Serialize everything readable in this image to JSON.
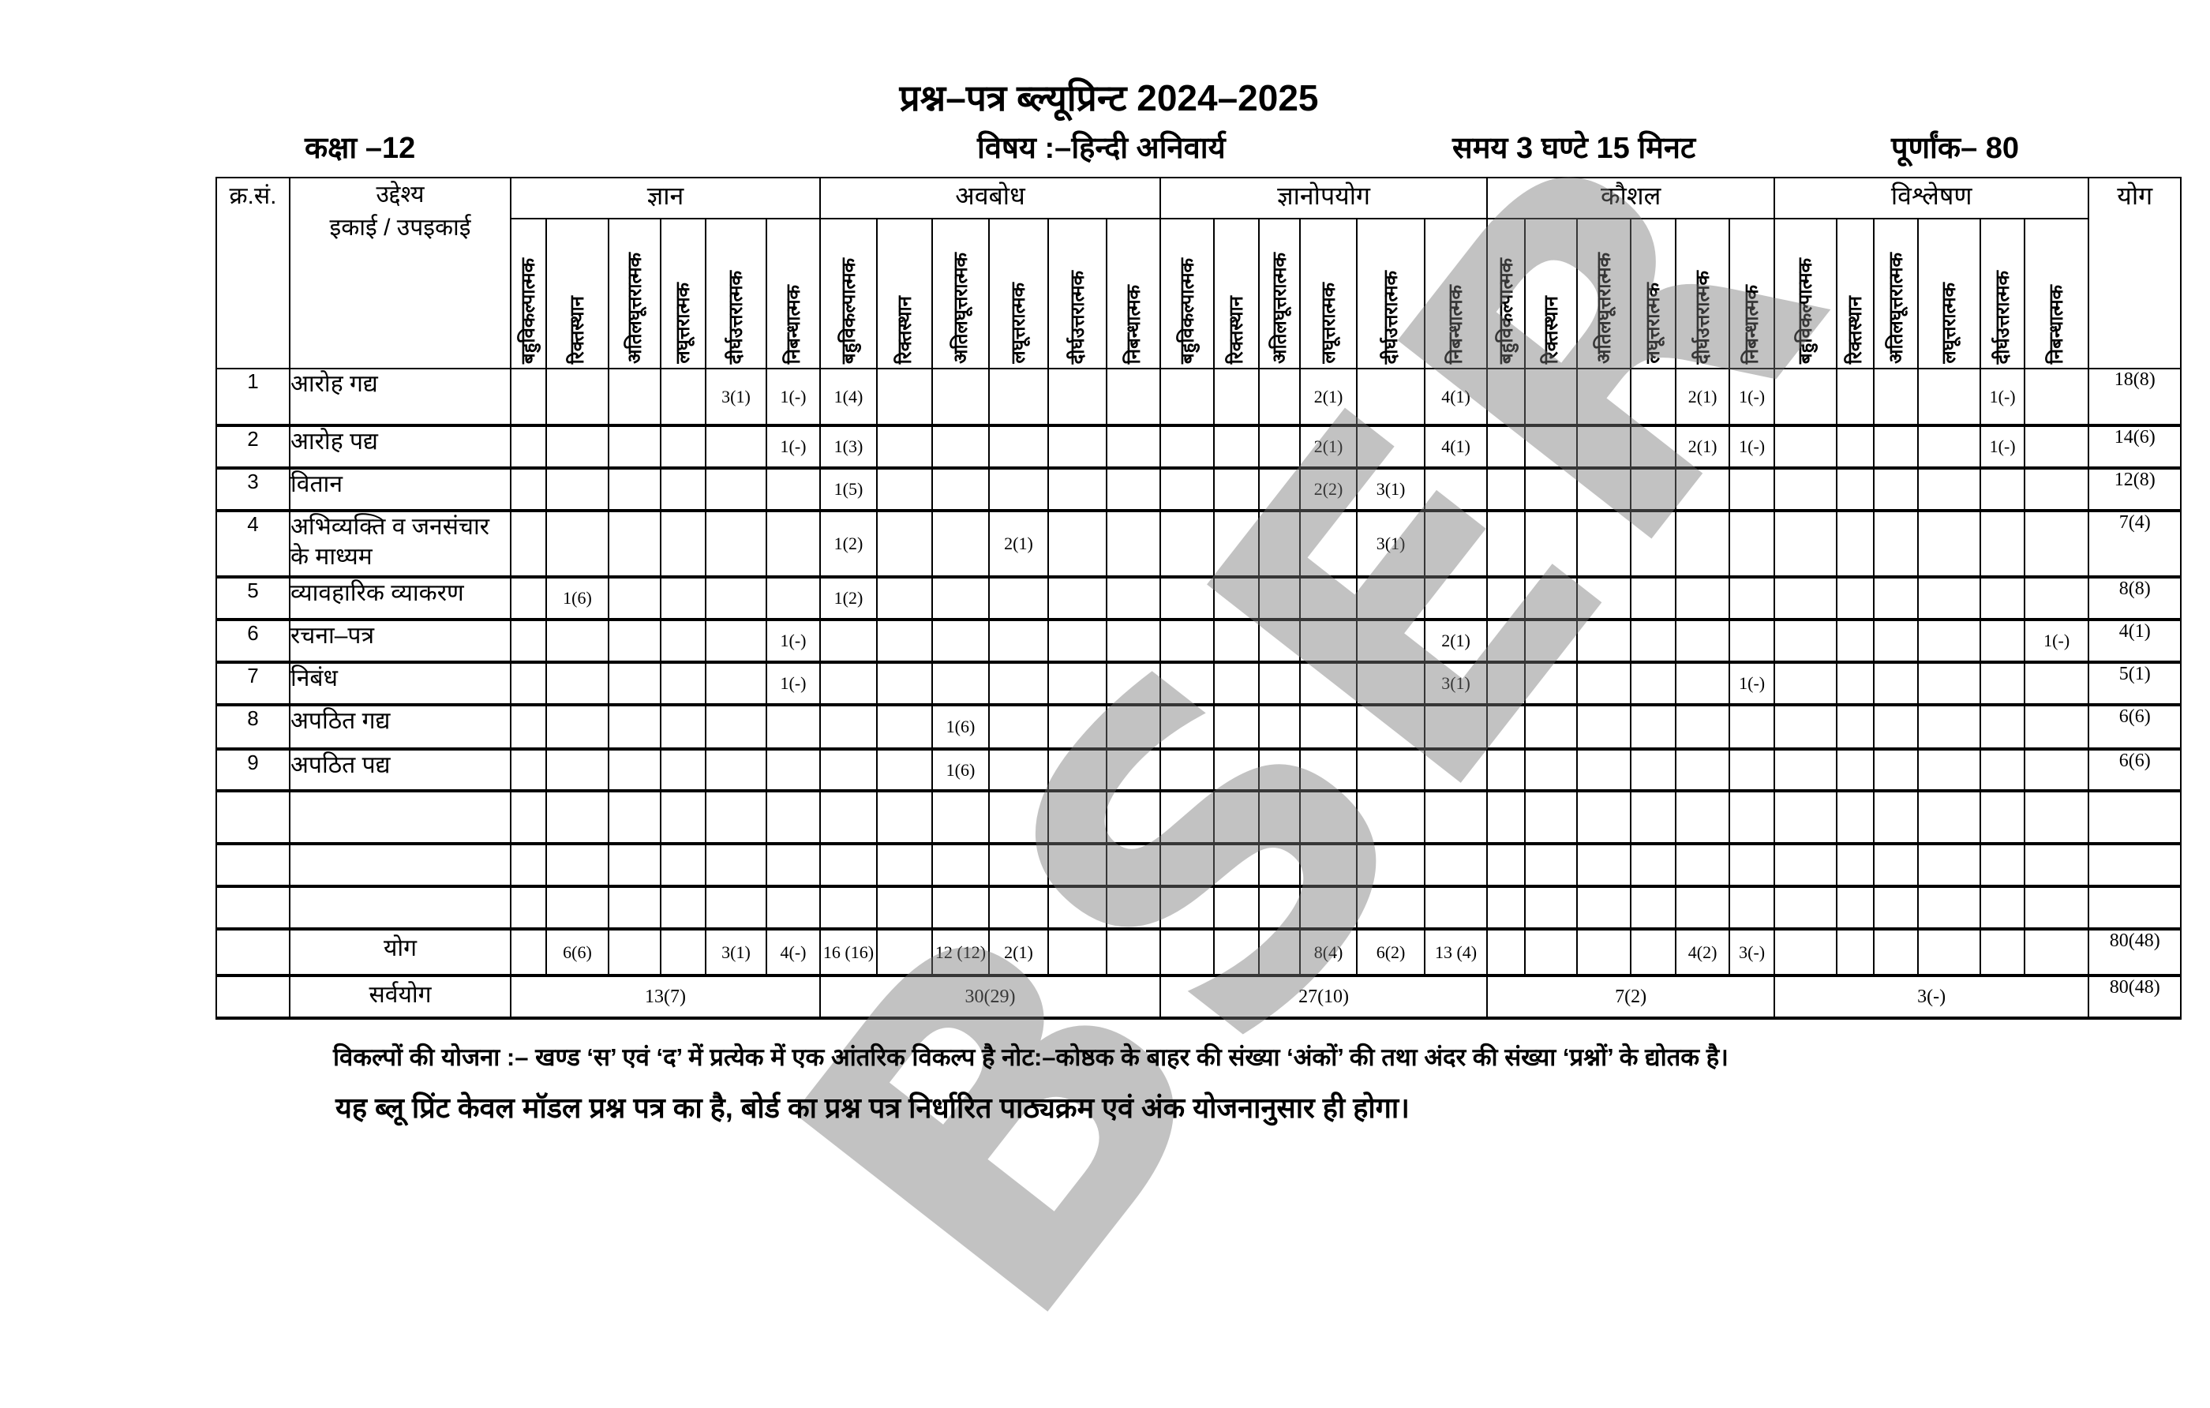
{
  "title": "प्रश्न–पत्र ब्ल्यूप्रिन्ट 2024–2025",
  "meta": {
    "class": "कक्षा –12",
    "subject": "विषय :–हिन्दी अनिवार्य",
    "time": "समय 3 घण्टे 15 मिनट",
    "max_marks": "पूर्णांक– 80"
  },
  "table": {
    "sn_header": "क्र.सं.",
    "objective_header": "उद्देश्य",
    "unit_header": "इकाई / उपइकाई",
    "groups": [
      "ज्ञान",
      "अवबोध",
      "ज्ञानोपयोग",
      "कौशल",
      "विश्लेषण"
    ],
    "total_header": "योग",
    "question_types": [
      "बहुविकल्पात्मक",
      "रिक्तस्थान",
      "अतिलघूत्तरात्मक",
      "लघूत्तरात्मक",
      "दीर्घउत्तरात्मक",
      "निबन्धात्मक"
    ]
  },
  "rows": [
    {
      "sn": "1",
      "unit": "आरोह गद्य",
      "cells": [
        "",
        "",
        "",
        "",
        "3(1)",
        "1(-)",
        "1(4)",
        "",
        "",
        "",
        "",
        "",
        "",
        "",
        "",
        "2(1)",
        "",
        "4(1)",
        "",
        "",
        "",
        "",
        "2(1)",
        "1(-)",
        "",
        "",
        "",
        "",
        "1(-)",
        ""
      ],
      "total": "18(8)"
    },
    {
      "sn": "2",
      "unit": "आरोह पद्य",
      "cells": [
        "",
        "",
        "",
        "",
        "",
        "1(-)",
        "1(3)",
        "",
        "",
        "",
        "",
        "",
        "",
        "",
        "",
        "2(1)",
        "",
        "4(1)",
        "",
        "",
        "",
        "",
        "2(1)",
        "1(-)",
        "",
        "",
        "",
        "",
        "1(-)",
        ""
      ],
      "total": "14(6)"
    },
    {
      "sn": "3",
      "unit": "वितान",
      "cells": [
        "",
        "",
        "",
        "",
        "",
        "",
        "1(5)",
        "",
        "",
        "",
        "",
        "",
        "",
        "",
        "",
        "2(2)",
        "3(1)",
        "",
        "",
        "",
        "",
        "",
        "",
        "",
        "",
        "",
        "",
        "",
        "",
        ""
      ],
      "total": "12(8)"
    },
    {
      "sn": "4",
      "unit": "अभिव्यक्ति व जनसंचार के माध्यम",
      "cells": [
        "",
        "",
        "",
        "",
        "",
        "",
        "1(2)",
        "",
        "",
        "2(1)",
        "",
        "",
        "",
        "",
        "",
        "",
        "3(1)",
        "",
        "",
        "",
        "",
        "",
        "",
        "",
        "",
        "",
        "",
        "",
        "",
        ""
      ],
      "total": "7(4)"
    },
    {
      "sn": "5",
      "unit": "व्यावहारिक व्याकरण",
      "cells": [
        "",
        "1(6)",
        "",
        "",
        "",
        "",
        "1(2)",
        "",
        "",
        "",
        "",
        "",
        "",
        "",
        "",
        "",
        "",
        "",
        "",
        "",
        "",
        "",
        "",
        "",
        "",
        "",
        "",
        "",
        "",
        ""
      ],
      "total": "8(8)"
    },
    {
      "sn": "6",
      "unit": "रचना–पत्र",
      "cells": [
        "",
        "",
        "",
        "",
        "",
        "1(-)",
        "",
        "",
        "",
        "",
        "",
        "",
        "",
        "",
        "",
        "",
        "",
        "2(1)",
        "",
        "",
        "",
        "",
        "",
        "",
        "",
        "",
        "",
        "",
        "",
        "1(-)"
      ],
      "total": "4(1)"
    },
    {
      "sn": "7",
      "unit": "निबंध",
      "cells": [
        "",
        "",
        "",
        "",
        "",
        "1(-)",
        "",
        "",
        "",
        "",
        "",
        "",
        "",
        "",
        "",
        "",
        "",
        "3(1)",
        "",
        "",
        "",
        "",
        "",
        "1(-)",
        "",
        "",
        "",
        "",
        "",
        ""
      ],
      "total": "5(1)"
    },
    {
      "sn": "8",
      "unit": "अपठित गद्य",
      "cells": [
        "",
        "",
        "",
        "",
        "",
        "",
        "",
        "",
        "1(6)",
        "",
        "",
        "",
        "",
        "",
        "",
        "",
        "",
        "",
        "",
        "",
        "",
        "",
        "",
        "",
        "",
        "",
        "",
        "",
        "",
        ""
      ],
      "total": "6(6)"
    },
    {
      "sn": "9",
      "unit": "अपठित पद्य",
      "cells": [
        "",
        "",
        "",
        "",
        "",
        "",
        "",
        "",
        "1(6)",
        "",
        "",
        "",
        "",
        "",
        "",
        "",
        "",
        "",
        "",
        "",
        "",
        "",
        "",
        "",
        "",
        "",
        "",
        "",
        "",
        ""
      ],
      "total": "6(6)"
    },
    {
      "sn": "",
      "unit": "",
      "cells": [
        "",
        "",
        "",
        "",
        "",
        "",
        "",
        "",
        "",
        "",
        "",
        "",
        "",
        "",
        "",
        "",
        "",
        "",
        "",
        "",
        "",
        "",
        "",
        "",
        "",
        "",
        "",
        "",
        "",
        ""
      ],
      "total": ""
    },
    {
      "sn": "",
      "unit": "",
      "cells": [
        "",
        "",
        "",
        "",
        "",
        "",
        "",
        "",
        "",
        "",
        "",
        "",
        "",
        "",
        "",
        "",
        "",
        "",
        "",
        "",
        "",
        "",
        "",
        "",
        "",
        "",
        "",
        "",
        "",
        ""
      ],
      "total": ""
    },
    {
      "sn": "",
      "unit": "",
      "cells": [
        "",
        "",
        "",
        "",
        "",
        "",
        "",
        "",
        "",
        "",
        "",
        "",
        "",
        "",
        "",
        "",
        "",
        "",
        "",
        "",
        "",
        "",
        "",
        "",
        "",
        "",
        "",
        "",
        "",
        ""
      ],
      "total": ""
    }
  ],
  "total_row": {
    "label": "योग",
    "cells": [
      "",
      "6(6)",
      "",
      "",
      "3(1)",
      "4(-)",
      "16 (16)",
      "",
      "12 (12)",
      "2(1)",
      "",
      "",
      "",
      "",
      "",
      "8(4)",
      "6(2)",
      "13 (4)",
      "",
      "",
      "",
      "",
      "4(2)",
      "3(-)",
      "",
      "",
      "",
      "",
      "",
      ""
    ],
    "total": "80(48)"
  },
  "grand_row": {
    "label": "सर्वयोग",
    "groups": [
      "13(7)",
      "30(29)",
      "27(10)",
      "7(2)",
      "3(-)"
    ],
    "total": "80(48)"
  },
  "notes": {
    "options": "विकल्पों की योजना :– खण्ड ‘स’ एवं ‘द’ में प्रत्येक में एक आंतरिक विकल्प है नोट:–कोष्ठक के बाहर की संख्या ‘अंकों’ की तथा अंदर की संख्या ‘प्रश्नों’ के द्योतक है।",
    "disclaimer": "यह ब्लू प्रिंट केवल मॉडल प्रश्न पत्र का है, बोर्ड का प्रश्न पत्र निर्धारित पाठ्यक्रम एवं अंक योजनानुसार ही होगा।"
  },
  "watermark": "BSER"
}
